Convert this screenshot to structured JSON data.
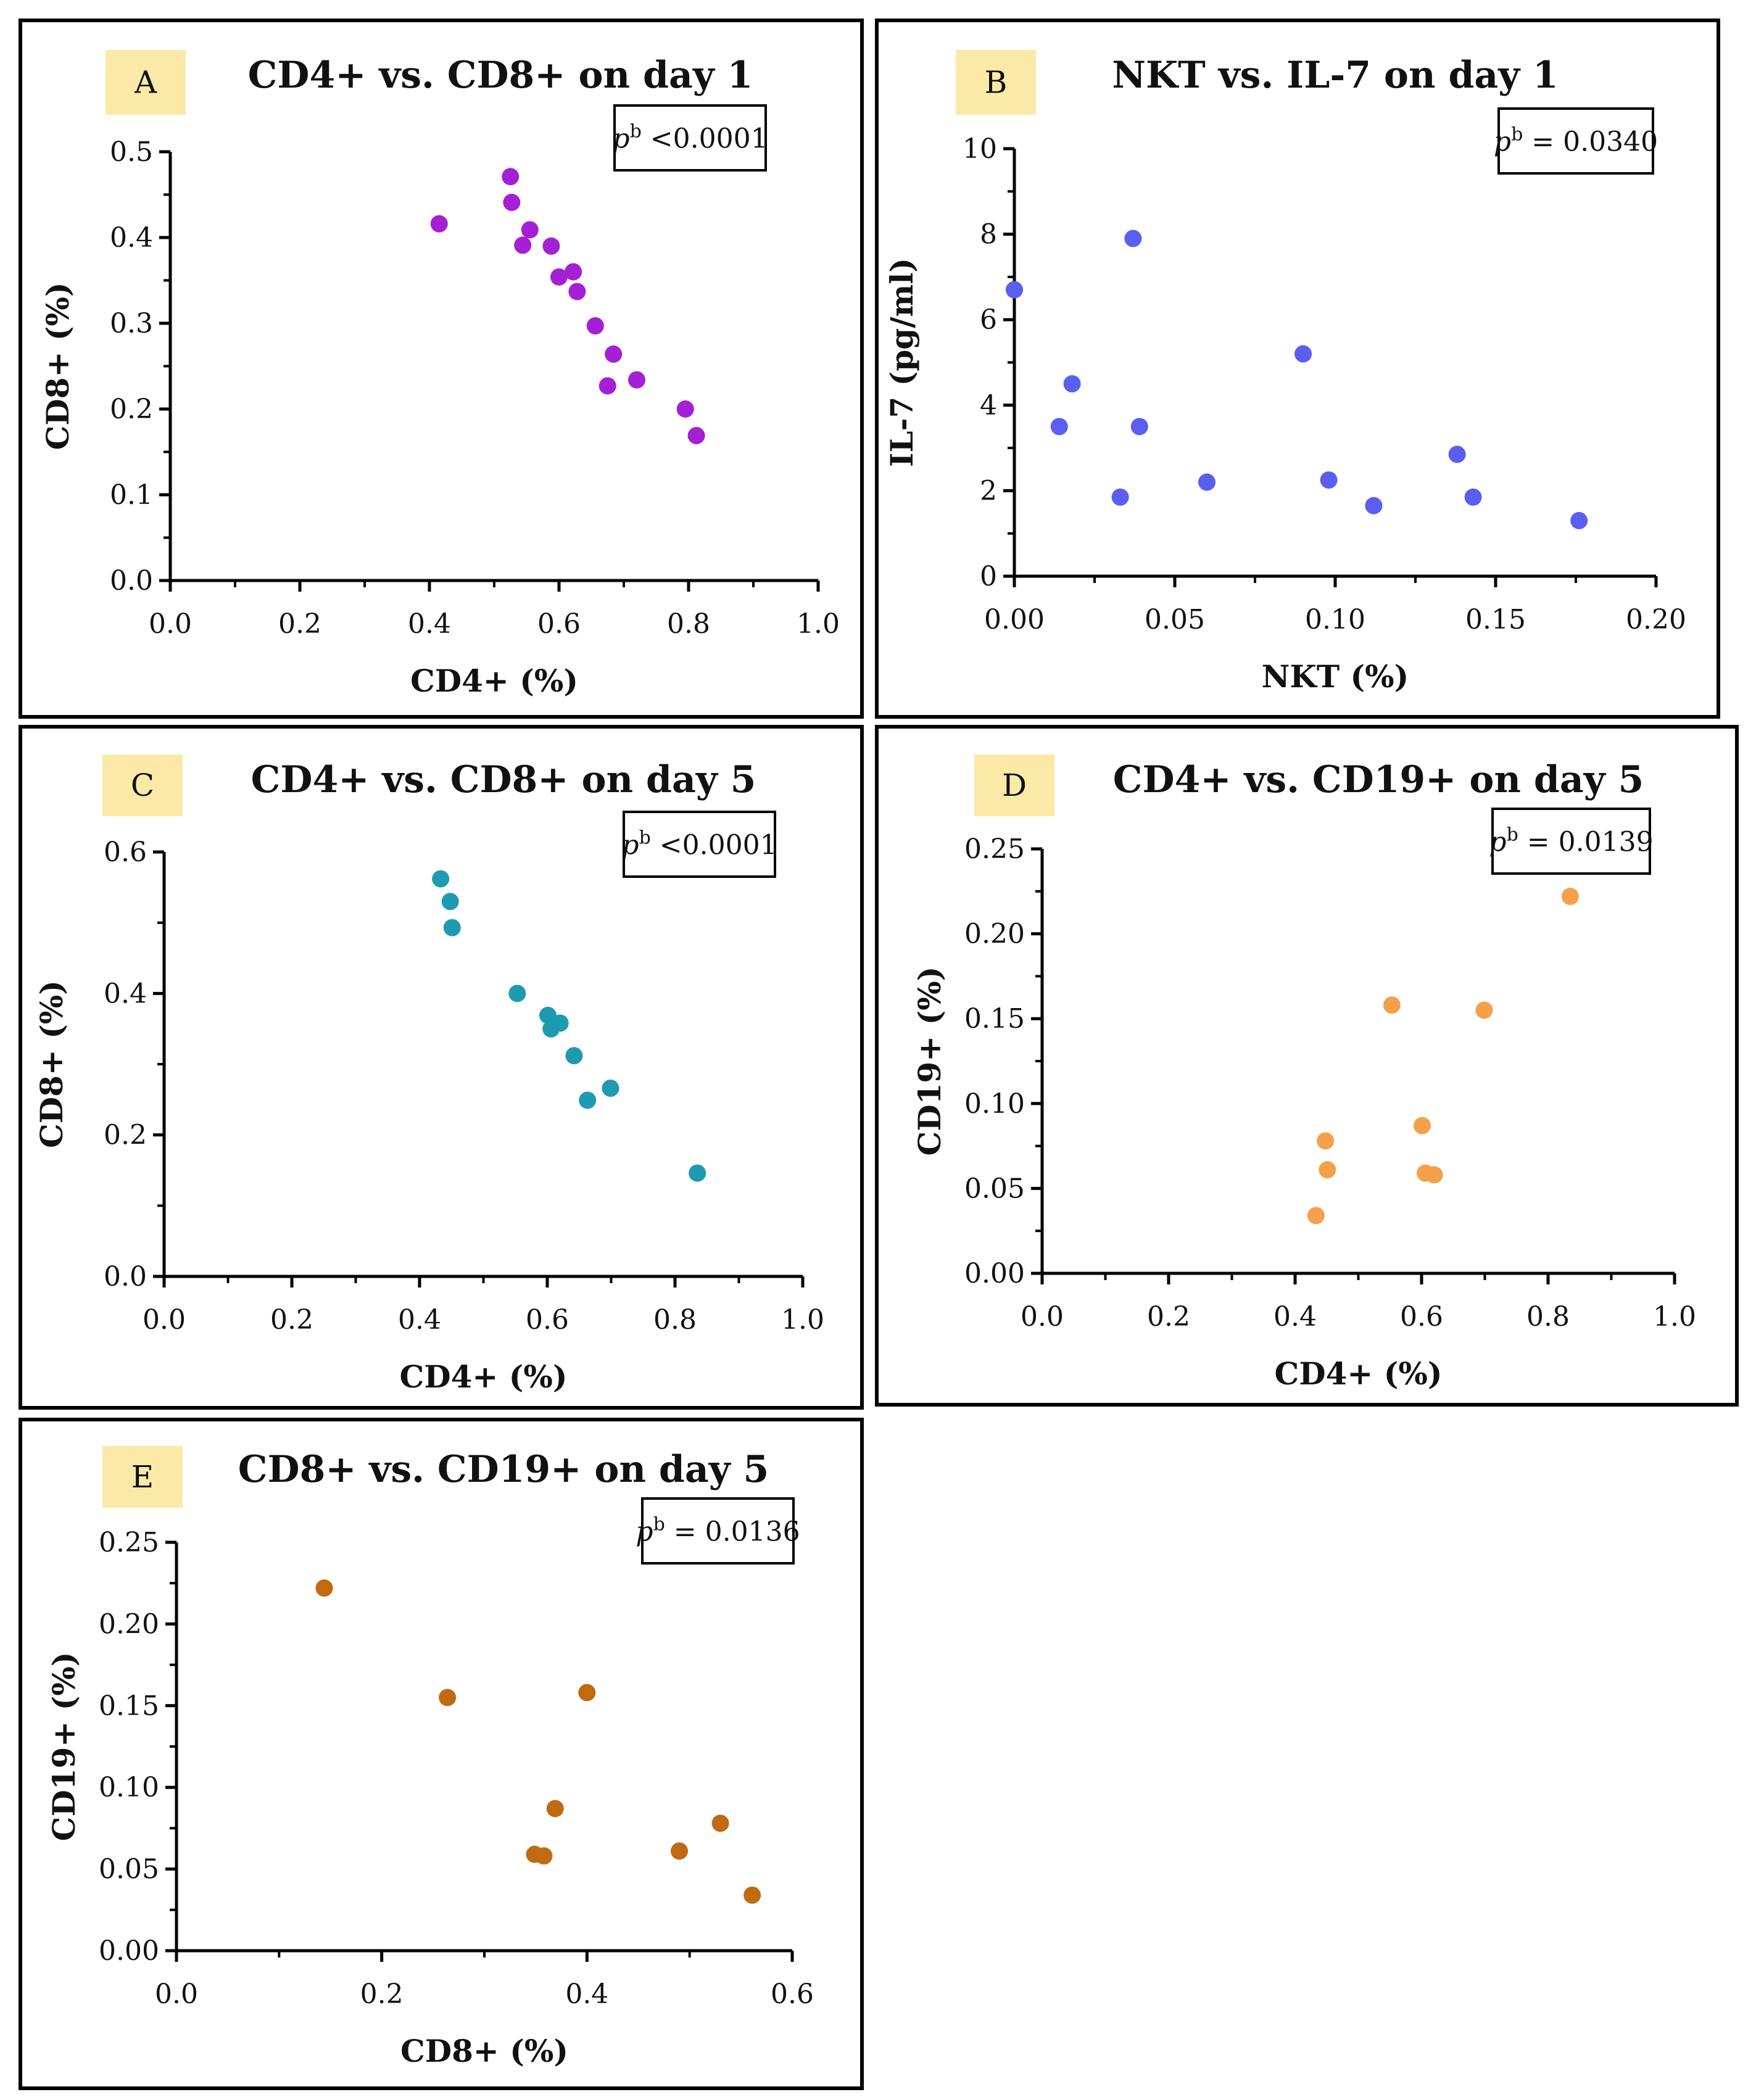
{
  "chart_data": [
    {
      "id": "A",
      "type": "scatter",
      "panel_label": "A",
      "title": "CD4+ vs. CD8+ on day 1",
      "xlabel": "CD4+ (%)",
      "ylabel": "CD8+ (%)",
      "xlim": [
        0,
        1.0
      ],
      "ylim": [
        0,
        0.5
      ],
      "xticks": [
        "0.0",
        "0.2",
        "0.4",
        "0.6",
        "0.8",
        "1.0"
      ],
      "yticks": [
        "0.0",
        "0.1",
        "0.2",
        "0.3",
        "0.4",
        "0.5"
      ],
      "x_tick_values": [
        0,
        0.2,
        0.4,
        0.6,
        0.8,
        1.0
      ],
      "y_tick_values": [
        0,
        0.1,
        0.2,
        0.3,
        0.4,
        0.5
      ],
      "annotation": {
        "p_symbol": "p",
        "superscript": "b",
        "text": " <0.0001"
      },
      "color": "#a51fd4",
      "points": [
        [
          0.415,
          0.416
        ],
        [
          0.525,
          0.471
        ],
        [
          0.527,
          0.441
        ],
        [
          0.544,
          0.391
        ],
        [
          0.555,
          0.409
        ],
        [
          0.588,
          0.39
        ],
        [
          0.6,
          0.354
        ],
        [
          0.622,
          0.36
        ],
        [
          0.628,
          0.337
        ],
        [
          0.656,
          0.297
        ],
        [
          0.684,
          0.264
        ],
        [
          0.675,
          0.227
        ],
        [
          0.72,
          0.234
        ],
        [
          0.795,
          0.2
        ],
        [
          0.812,
          0.169
        ]
      ]
    },
    {
      "id": "B",
      "type": "scatter",
      "panel_label": "B",
      "title": "NKT vs. IL-7 on day 1",
      "xlabel": "NKT (%)",
      "ylabel": "IL-7 (pg/ml)",
      "xlim": [
        0,
        0.2
      ],
      "ylim": [
        0,
        10
      ],
      "xticks": [
        "0.00",
        "0.05",
        "0.10",
        "0.15",
        "0.20"
      ],
      "yticks": [
        "0",
        "2",
        "4",
        "6",
        "8",
        "10"
      ],
      "x_tick_values": [
        0,
        0.05,
        0.1,
        0.15,
        0.2
      ],
      "y_tick_values": [
        0,
        2,
        4,
        6,
        8,
        10
      ],
      "annotation": {
        "p_symbol": "p",
        "superscript": "b",
        "text": " = 0.0340"
      },
      "color": "#5b5ef0",
      "points": [
        [
          0.0,
          6.7
        ],
        [
          0.014,
          3.5
        ],
        [
          0.018,
          4.5
        ],
        [
          0.037,
          7.9
        ],
        [
          0.039,
          3.5
        ],
        [
          0.033,
          1.85
        ],
        [
          0.06,
          2.2
        ],
        [
          0.09,
          5.2
        ],
        [
          0.098,
          2.25
        ],
        [
          0.112,
          1.65
        ],
        [
          0.138,
          2.85
        ],
        [
          0.143,
          1.85
        ],
        [
          0.176,
          1.3
        ]
      ]
    },
    {
      "id": "C",
      "type": "scatter",
      "panel_label": "C",
      "title": "CD4+ vs. CD8+ on day 5",
      "xlabel": "CD4+ (%)",
      "ylabel": "CD8+ (%)",
      "xlim": [
        0,
        1.0
      ],
      "ylim": [
        0,
        0.6
      ],
      "xticks": [
        "0.0",
        "0.2",
        "0.4",
        "0.6",
        "0.8",
        "1.0"
      ],
      "yticks": [
        "0.0",
        "0.2",
        "0.4",
        "0.6"
      ],
      "x_tick_values": [
        0,
        0.2,
        0.4,
        0.6,
        0.8,
        1.0
      ],
      "y_tick_values": [
        0,
        0.2,
        0.4,
        0.6
      ],
      "annotation": {
        "p_symbol": "p",
        "superscript": "b",
        "text": " <0.0001"
      },
      "color": "#1e9bb0",
      "points": [
        [
          0.433,
          0.562
        ],
        [
          0.448,
          0.53
        ],
        [
          0.451,
          0.493
        ],
        [
          0.553,
          0.4
        ],
        [
          0.601,
          0.369
        ],
        [
          0.606,
          0.35
        ],
        [
          0.62,
          0.358
        ],
        [
          0.642,
          0.312
        ],
        [
          0.663,
          0.249
        ],
        [
          0.699,
          0.266
        ],
        [
          0.835,
          0.146
        ]
      ]
    },
    {
      "id": "D",
      "type": "scatter",
      "panel_label": "D",
      "title": "CD4+ vs. CD19+ on day 5",
      "xlabel": "CD4+ (%)",
      "ylabel": "CD19+ (%)",
      "xlim": [
        0,
        1.0
      ],
      "ylim": [
        0,
        0.25
      ],
      "xticks": [
        "0.0",
        "0.2",
        "0.4",
        "0.6",
        "0.8",
        "1.0"
      ],
      "yticks": [
        "0.00",
        "0.05",
        "0.10",
        "0.15",
        "0.20",
        "0.25"
      ],
      "x_tick_values": [
        0,
        0.2,
        0.4,
        0.6,
        0.8,
        1.0
      ],
      "y_tick_values": [
        0,
        0.05,
        0.1,
        0.15,
        0.2,
        0.25
      ],
      "annotation": {
        "p_symbol": "p",
        "superscript": "b",
        "text": " = 0.0139"
      },
      "color": "#f5a04a",
      "points": [
        [
          0.433,
          0.034
        ],
        [
          0.448,
          0.078
        ],
        [
          0.451,
          0.061
        ],
        [
          0.553,
          0.158
        ],
        [
          0.601,
          0.087
        ],
        [
          0.606,
          0.059
        ],
        [
          0.62,
          0.058
        ],
        [
          0.699,
          0.155
        ],
        [
          0.835,
          0.222
        ]
      ]
    },
    {
      "id": "E",
      "type": "scatter",
      "panel_label": "E",
      "title": "CD8+ vs. CD19+ on day 5",
      "xlabel": "CD8+ (%)",
      "ylabel": "CD19+ (%)",
      "xlim": [
        0,
        0.6
      ],
      "ylim": [
        0,
        0.25
      ],
      "xticks": [
        "0.0",
        "0.2",
        "0.4",
        "0.6"
      ],
      "yticks": [
        "0.00",
        "0.05",
        "0.10",
        "0.15",
        "0.20",
        "0.25"
      ],
      "x_tick_values": [
        0,
        0.2,
        0.4,
        0.6
      ],
      "y_tick_values": [
        0,
        0.05,
        0.1,
        0.15,
        0.2,
        0.25
      ],
      "annotation": {
        "p_symbol": "p",
        "superscript": "b",
        "text": " = 0.0136"
      },
      "color": "#c06a12",
      "points": [
        [
          0.144,
          0.222
        ],
        [
          0.264,
          0.155
        ],
        [
          0.4,
          0.158
        ],
        [
          0.369,
          0.087
        ],
        [
          0.349,
          0.059
        ],
        [
          0.358,
          0.058
        ],
        [
          0.49,
          0.061
        ],
        [
          0.53,
          0.078
        ],
        [
          0.561,
          0.034
        ]
      ]
    }
  ]
}
